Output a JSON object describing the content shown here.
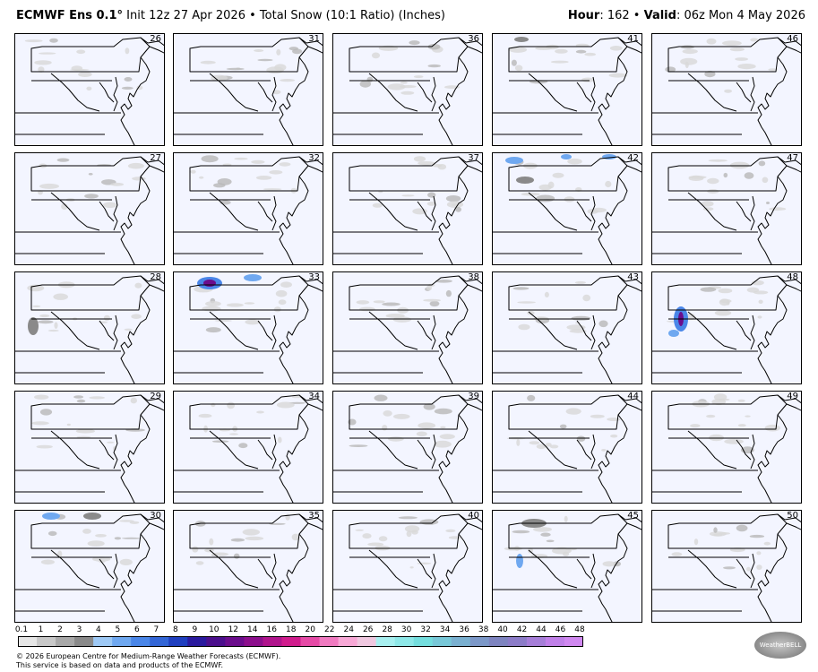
{
  "header": {
    "model": "ECMWF Ens 0.1",
    "degree": "°",
    "init": "Init 12z 27 Apr 2026",
    "sep": "•",
    "product": "Total Snow (10:1 Ratio) (Inches)",
    "hour_label": "Hour",
    "hour_value": ": 162",
    "valid_label": "Valid",
    "valid_value": ": 06z Mon 4 May 2026"
  },
  "members": [
    [
      26,
      31,
      36,
      41,
      46
    ],
    [
      27,
      32,
      37,
      42,
      47
    ],
    [
      28,
      33,
      38,
      43,
      48
    ],
    [
      29,
      34,
      39,
      44,
      49
    ],
    [
      30,
      35,
      40,
      45,
      50
    ]
  ],
  "member_labels": [
    "26",
    "31",
    "36",
    "41",
    "46",
    "27",
    "32",
    "37",
    "42",
    "47",
    "28",
    "33",
    "38",
    "43",
    "48",
    "29",
    "34",
    "39",
    "44",
    "49",
    "30",
    "35",
    "40",
    "45",
    "50"
  ],
  "colorbar": {
    "labels": [
      "0.1",
      "1",
      "2",
      "3",
      "4",
      "5",
      "6",
      "7",
      "8",
      "9",
      "10",
      "12",
      "14",
      "16",
      "18",
      "20",
      "22",
      "24",
      "26",
      "28",
      "30",
      "32",
      "34",
      "36",
      "38",
      "40",
      "42",
      "44",
      "46",
      "48"
    ],
    "colors": [
      "#e6e6e6",
      "#c8c8c8",
      "#a8a8a8",
      "#8a8a8a",
      "#9ec9f5",
      "#6fa8f0",
      "#4a86e8",
      "#3366d6",
      "#1f3fbf",
      "#2a1a9e",
      "#4b0f8c",
      "#6b0d8c",
      "#8c0f8c",
      "#b0148c",
      "#d01c8c",
      "#e64aa6",
      "#f07ac0",
      "#f8a8d6",
      "#f0c8e0",
      "#a8f0f0",
      "#8ee8e8",
      "#74dede",
      "#78c8d8",
      "#7ab0d0",
      "#7c98c8",
      "#7e84c0",
      "#8c7cc8",
      "#a67ed8",
      "#c080e8",
      "#d088f0"
    ]
  },
  "footer": {
    "line1": "© 2026 European Centre for Medium-Range Weather Forecasts (ECMWF).",
    "line2": "This service is based on data and products of the ECMWF."
  },
  "logo_text": "WeatherBELL"
}
